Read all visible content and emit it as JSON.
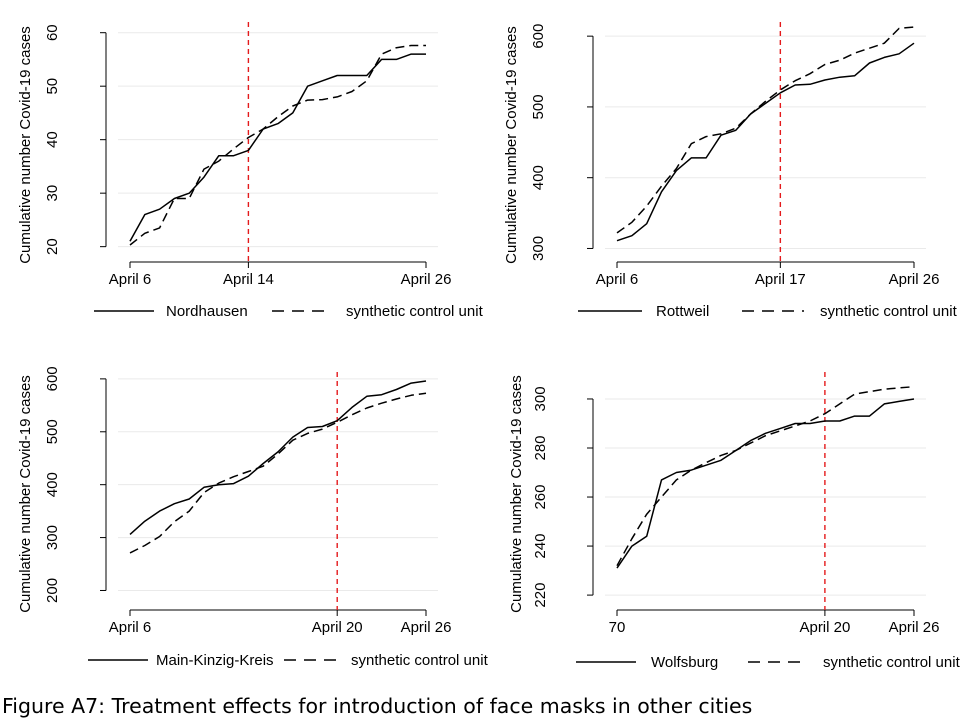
{
  "caption": "Figure A7: Treatment effects for introduction of face masks in other cities",
  "colors": {
    "line": "#000000",
    "treatment": "#e41a1c",
    "grid": "#eaeaea"
  },
  "chart_data": [
    {
      "type": "line",
      "title": "",
      "xlabel": "",
      "ylabel": "Cumulative number Covid-19 cases",
      "xlim": [
        6,
        26
      ],
      "ylim": [
        19,
        62
      ],
      "yticks": [
        20,
        30,
        40,
        50,
        60
      ],
      "xticks": [
        {
          "value": 6,
          "label": "April 6"
        },
        {
          "value": 14,
          "label": "April 14"
        },
        {
          "value": 26,
          "label": "April 26"
        }
      ],
      "treatment": {
        "x": 14
      },
      "legend": "bottom",
      "series": [
        {
          "name": "Nordhausen",
          "style": "solid",
          "x": [
            6,
            7,
            8,
            9,
            10,
            11,
            12,
            13,
            14,
            15,
            16,
            17,
            18,
            19,
            20,
            21,
            22,
            23,
            24,
            25,
            26
          ],
          "values": [
            21,
            26,
            27,
            29,
            30,
            33,
            37,
            37,
            38,
            42,
            43,
            45,
            50,
            51,
            52,
            52,
            52,
            55,
            55,
            56,
            56
          ]
        },
        {
          "name": "synthetic control unit",
          "style": "dashed",
          "x": [
            6,
            7,
            8,
            9,
            10,
            11,
            12,
            13,
            14,
            15,
            16,
            17,
            18,
            19,
            20,
            21,
            22,
            23,
            24,
            25,
            26
          ],
          "values": [
            20.3,
            22.5,
            23.5,
            29,
            29,
            34.5,
            36,
            38.3,
            40.4,
            42,
            44.3,
            46.3,
            47.4,
            47.5,
            48,
            49,
            51,
            56,
            57.2,
            57.6,
            57.6
          ]
        }
      ]
    },
    {
      "type": "line",
      "title": "",
      "xlabel": "",
      "ylabel": "Cumulative number Covid-19 cases",
      "xlim": [
        6,
        26
      ],
      "ylim": [
        295,
        620
      ],
      "yticks": [
        300,
        400,
        500,
        600
      ],
      "xticks": [
        {
          "value": 6,
          "label": "April 6"
        },
        {
          "value": 17,
          "label": "April 17"
        },
        {
          "value": 26,
          "label": "April 26"
        }
      ],
      "treatment": {
        "x": 17
      },
      "legend": "bottom",
      "series": [
        {
          "name": "Rottweil",
          "style": "solid",
          "x": [
            6,
            7,
            8,
            9,
            10,
            11,
            12,
            13,
            14,
            15,
            16,
            17,
            18,
            19,
            20,
            21,
            22,
            23,
            24,
            25,
            26
          ],
          "values": [
            311,
            318,
            335,
            380,
            410,
            428,
            428,
            460,
            467,
            490,
            505,
            520,
            531,
            532,
            538,
            542,
            544,
            562,
            570,
            575,
            590
          ]
        },
        {
          "name": "synthetic control unit",
          "style": "dashed",
          "x": [
            6,
            7,
            8,
            9,
            10,
            11,
            12,
            13,
            14,
            15,
            16,
            17,
            18,
            19,
            20,
            21,
            22,
            23,
            24,
            25,
            26
          ],
          "values": [
            322,
            337,
            360,
            388,
            413,
            448,
            458,
            462,
            470,
            490,
            508,
            524,
            537,
            547,
            560,
            566,
            576,
            583,
            590,
            611,
            613
          ]
        }
      ]
    },
    {
      "type": "line",
      "title": "",
      "xlabel": "",
      "ylabel": "Cumulative number Covid-19 cases",
      "xlim": [
        6,
        26
      ],
      "ylim": [
        182,
        613
      ],
      "yticks": [
        200,
        300,
        400,
        500,
        600
      ],
      "xticks": [
        {
          "value": 6,
          "label": "April 6"
        },
        {
          "value": 20,
          "label": "April 20"
        },
        {
          "value": 26,
          "label": "April 26"
        }
      ],
      "treatment": {
        "x": 20
      },
      "legend": "bottom",
      "series": [
        {
          "name": "Main-Kinzig-Kreis",
          "style": "solid",
          "x": [
            6,
            7,
            8,
            9,
            10,
            11,
            12,
            13,
            14,
            15,
            16,
            17,
            18,
            19,
            20,
            21,
            22,
            23,
            24,
            25,
            26
          ],
          "values": [
            306,
            331,
            350,
            364,
            373,
            395,
            400,
            402,
            416,
            440,
            462,
            490,
            508,
            510,
            521,
            546,
            567,
            570,
            580,
            592,
            596
          ]
        },
        {
          "name": "synthetic control unit",
          "style": "dashed",
          "x": [
            6,
            7,
            8,
            9,
            10,
            11,
            12,
            13,
            14,
            15,
            16,
            17,
            18,
            19,
            20,
            21,
            22,
            23,
            24,
            25,
            26
          ],
          "values": [
            271,
            285,
            302,
            330,
            350,
            385,
            403,
            415,
            425,
            435,
            458,
            484,
            497,
            505,
            518,
            532,
            545,
            554,
            562,
            569,
            573
          ]
        }
      ]
    },
    {
      "type": "line",
      "title": "",
      "xlabel": "",
      "ylabel": "Cumulative number Covid-19 cases",
      "xlim": [
        69.5,
        90
      ],
      "ylim": [
        218,
        311
      ],
      "yticks": [
        220,
        240,
        260,
        280,
        300
      ],
      "xticks": [
        {
          "value": 70,
          "label": "70"
        },
        {
          "value": 84,
          "label": "April 20"
        },
        {
          "value": 90,
          "label": "April 26"
        }
      ],
      "treatment": {
        "x": 84
      },
      "legend": "bottom",
      "series": [
        {
          "name": "Wolfsburg",
          "style": "solid",
          "x": [
            70,
            71,
            72,
            73,
            74,
            75,
            76,
            77,
            78,
            79,
            80,
            81,
            82,
            83,
            84,
            85,
            86,
            87,
            88,
            89,
            90
          ],
          "values": [
            231,
            240,
            244,
            267,
            270,
            271,
            273,
            275,
            279,
            283,
            286,
            288,
            290,
            290,
            291,
            291,
            293,
            293,
            298,
            299,
            300
          ]
        },
        {
          "name": "synthetic control unit",
          "style": "dashed",
          "x": [
            70,
            71,
            72,
            73,
            74,
            75,
            76,
            77,
            78,
            79,
            80,
            81,
            82,
            83,
            84,
            85,
            86,
            87,
            88,
            89,
            90
          ],
          "values": [
            232,
            243,
            253,
            260,
            267,
            271,
            274,
            277,
            279,
            282,
            285,
            287,
            289,
            291,
            294,
            298,
            302,
            303,
            304,
            304.5,
            305
          ]
        }
      ]
    }
  ]
}
